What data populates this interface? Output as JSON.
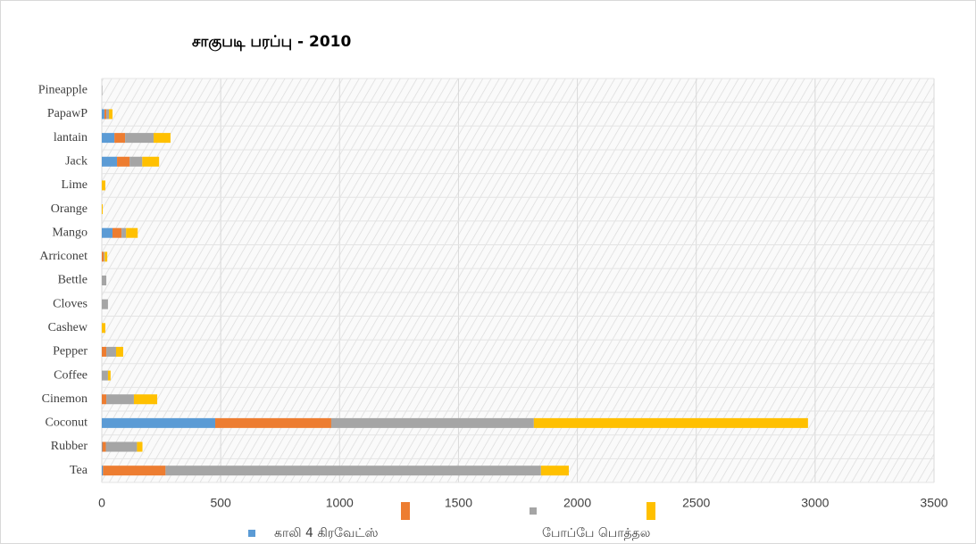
{
  "chart_data": {
    "type": "stacked_barh",
    "title": "சாகுபடி பரப்பு  - 2010",
    "categories": [
      "Tea",
      "Rubber",
      "Coconut",
      "Cinemon",
      "Coffee",
      "Pepper",
      "Cashew",
      "Cloves",
      "Bettle",
      "Arriconet",
      "Mango",
      "Orange",
      "Lime",
      "Jack",
      "lantain",
      "PapawP",
      "Pineapple"
    ],
    "series": [
      {
        "name": "காலி 4 கிரவேட்ஸ்",
        "color": "#5b9bd5",
        "values": [
          5,
          2,
          477,
          0,
          0,
          0,
          0,
          0,
          0,
          0,
          45,
          0,
          0,
          64,
          53,
          11,
          0
        ]
      },
      {
        "name": null,
        "color": "#ed7d31",
        "values": [
          263,
          15,
          488,
          19,
          0,
          19,
          0,
          0,
          0,
          8,
          38,
          0,
          0,
          53,
          45,
          8,
          0
        ]
      },
      {
        "name": "போப்பே பொத்தல",
        "color": "#a5a5a5",
        "values": [
          1579,
          131,
          852,
          116,
          26,
          41,
          0,
          26,
          19,
          4,
          19,
          0,
          0,
          53,
          120,
          11,
          2
        ]
      },
      {
        "name": null,
        "color": "#ffc000",
        "values": [
          117,
          23,
          1153,
          98,
          11,
          30,
          15,
          0,
          0,
          11,
          49,
          4,
          15,
          71,
          71,
          15,
          0
        ]
      }
    ],
    "xlim": [
      0,
      3500
    ],
    "xticks": [
      0,
      500,
      1000,
      1500,
      2000,
      2500,
      3000,
      3500
    ],
    "grid": true
  }
}
